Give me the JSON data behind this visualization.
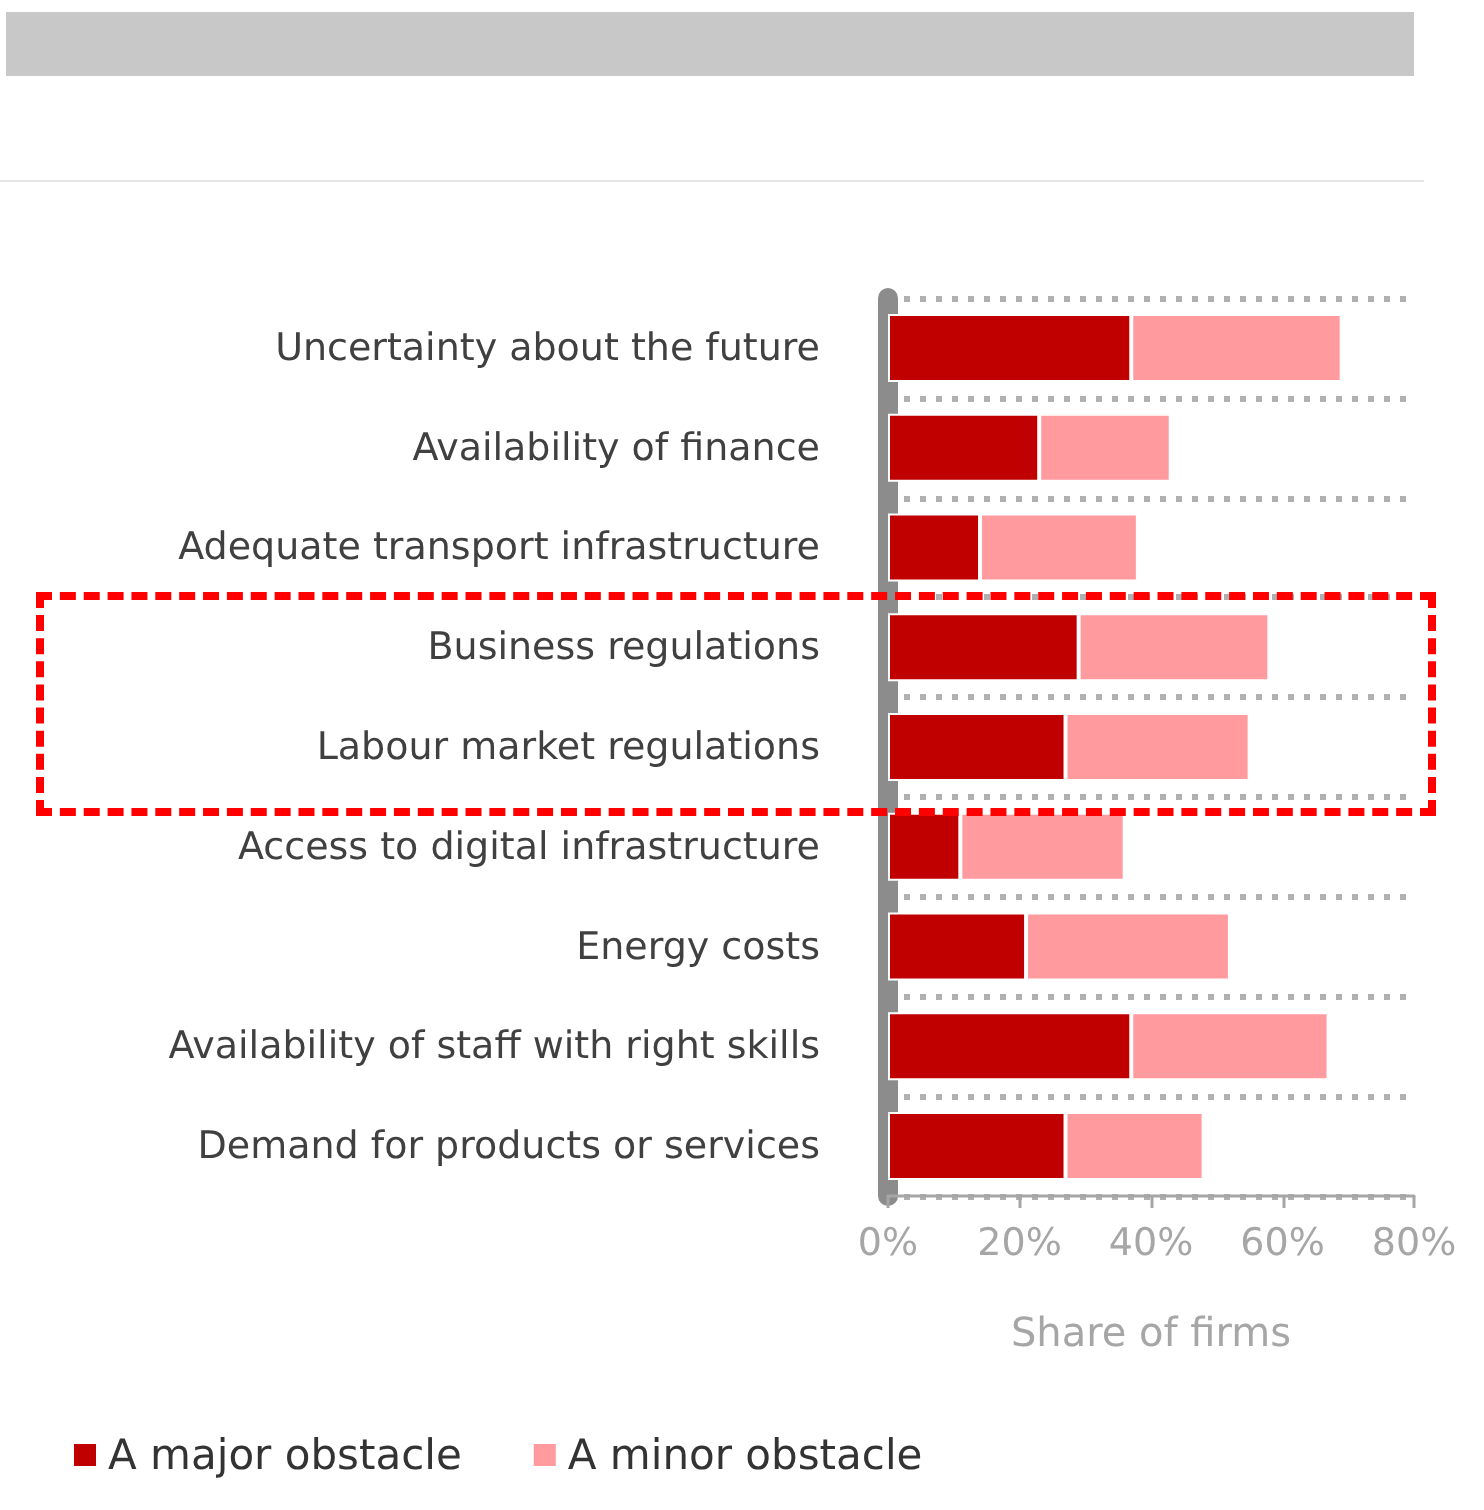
{
  "chart_data": {
    "type": "bar",
    "orientation": "horizontal",
    "stacked": true,
    "xlabel": "Share of firms",
    "categories": [
      "Uncertainty about the future",
      "Availability of finance",
      "Adequate transport infrastructure",
      "Business regulations",
      "Labour market regulations",
      "Access to digital infrastructure",
      "Energy costs",
      "Availability of staff with right skills",
      "Demand for products or services"
    ],
    "series": [
      {
        "name": "A major obstacle",
        "color": "#c00000",
        "values": [
          37,
          23,
          14,
          29,
          27,
          11,
          21,
          37,
          27
        ]
      },
      {
        "name": "A minor obstacle",
        "color": "#ff9a9e",
        "values": [
          32,
          20,
          24,
          29,
          28,
          25,
          31,
          30,
          21
        ]
      }
    ],
    "xlim": [
      0,
      80
    ],
    "xticks": [
      {
        "value": 0,
        "label": "0%"
      },
      {
        "value": 20,
        "label": "20%"
      },
      {
        "value": 40,
        "label": "40%"
      },
      {
        "value": 60,
        "label": "60%"
      },
      {
        "value": 80,
        "label": "80%"
      }
    ],
    "grid": "y",
    "legend": "bottom left"
  }
}
